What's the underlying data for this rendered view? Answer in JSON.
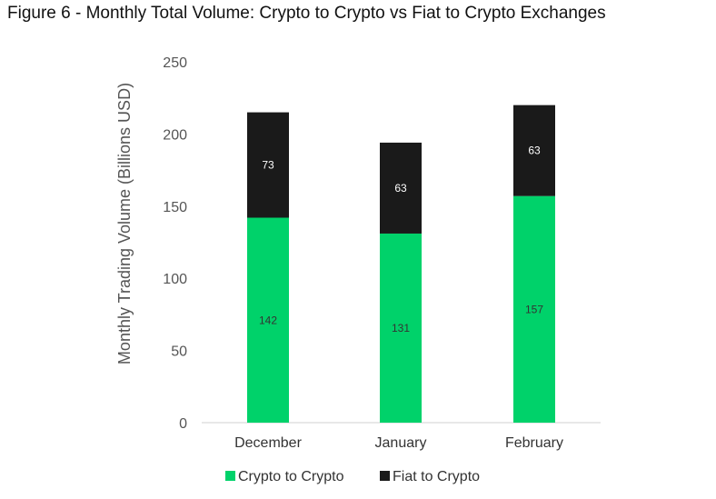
{
  "chart_data": {
    "type": "bar",
    "stacked": true,
    "title": "Figure 6 - Monthly Total Volume: Crypto to Crypto vs Fiat to Crypto Exchanges",
    "xlabel": "",
    "ylabel": "Monthly Trading Volume (Billions USD)",
    "ylim": [
      0,
      250
    ],
    "yticks": [
      0,
      50,
      100,
      150,
      200,
      250
    ],
    "categories": [
      "December",
      "January",
      "February"
    ],
    "series": [
      {
        "name": "Crypto to Crypto",
        "values": [
          142,
          131,
          157
        ],
        "color": "#00d26a",
        "label_color": "#333333"
      },
      {
        "name": "Fiat to Crypto",
        "values": [
          73,
          63,
          63
        ],
        "color": "#1a1a1a",
        "label_color": "#ffffff"
      }
    ],
    "legend_position": "bottom",
    "grid": false
  }
}
